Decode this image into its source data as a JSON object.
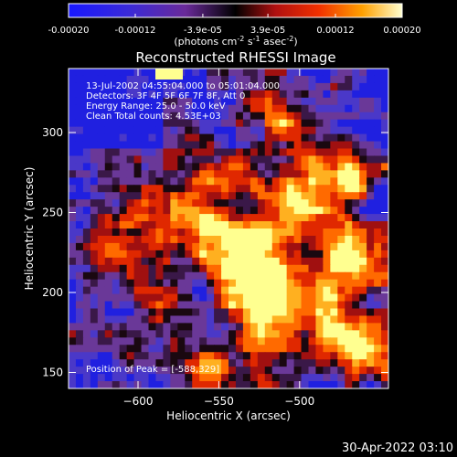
{
  "chart_data": {
    "type": "heatmap",
    "title": "Reconstructed RHESSI Image",
    "xlabel": "Heliocentric X (arcsec)",
    "ylabel": "Heliocentric Y (arcsec)",
    "xlim": [
      -643,
      -445
    ],
    "ylim": [
      140,
      340
    ],
    "x_ticks": [
      -600,
      -550,
      -500
    ],
    "y_ticks": [
      150,
      200,
      250,
      300
    ],
    "annotations": [
      "13-Jul-2002 04:55:04.000 to 05:01:04.000",
      "Detectors: 3F 4F 5F 6F 7F 8F, Att 0",
      "Energy Range: 25.0 - 50.0 keV",
      "Clean     Total counts: 4.53E+03"
    ],
    "peak_label": "Position of Peak = [-588,329]",
    "colorbar": {
      "range": [
        -0.0002,
        0.0002
      ],
      "tick_labels": [
        "-0.00020",
        "-0.00012",
        "-3.9e-05",
        "3.9e-05",
        "0.00012",
        "0.00020"
      ],
      "tick_values": [
        -0.0002,
        -0.00012,
        -3.9e-05,
        3.9e-05,
        0.00012,
        0.0002
      ],
      "unit": "(photons cm",
      "unit_sup1": "-2",
      "unit_mid": " s",
      "unit_sup2": "-1",
      "unit_mid2": " asec",
      "unit_sup3": "-2",
      "unit_end": ")"
    },
    "grid": false,
    "colors": {
      "cold": [
        "#1010ff",
        "#4030d0",
        "#603090",
        "#501860"
      ],
      "hot": [
        "#a01010",
        "#e02000",
        "#ff6000",
        "#ffb020",
        "#ffff90"
      ]
    }
  },
  "footer": {
    "date": "30-Apr-2022 03:10"
  }
}
